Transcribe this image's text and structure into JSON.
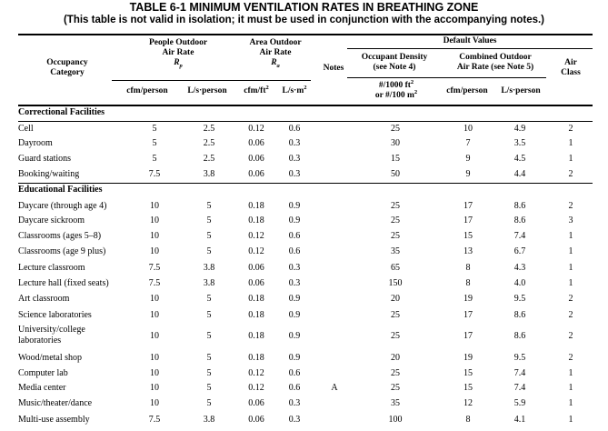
{
  "title": "TABLE 6-1     MINIMUM VENTILATION RATES IN BREATHING ZONE",
  "subtitle": "(This table is not valid in isolation; it must be used in conjunction with the accompanying notes.)",
  "headers": {
    "occupancy": [
      "Occupancy",
      "Category"
    ],
    "people": [
      "People Outdoor",
      "Air Rate"
    ],
    "people_sym": "R",
    "people_sub": "p",
    "area": [
      "Area Outdoor",
      "Air Rate"
    ],
    "area_sym": "R",
    "area_sub": "a",
    "notes": "Notes",
    "default_values": "Default Values",
    "density": [
      "Occupant Density",
      "(see Note 4)"
    ],
    "combined": [
      "Combined Outdoor",
      "Air Rate (see Note 5)"
    ],
    "air_class": [
      "Air",
      "Class"
    ],
    "unit_cfm_person": "cfm/person",
    "unit_ls_person": "L/s·person",
    "unit_cfm_ft2": "cfm/ft",
    "unit_ls_m2": "L/s·m",
    "unit_sq": "2",
    "density_unit_1": "#/1000 ft",
    "density_unit_2": "or #/100 m",
    "unit_cfm_person_2": "cfm/person",
    "unit_ls_person_2": "L/s·person"
  },
  "sections": [
    {
      "name": "Correctional Facilities",
      "rows": [
        {
          "name": "Cell",
          "rp_cfm": "5",
          "rp_ls": "2.5",
          "ra_cfm": "0.12",
          "ra_ls": "0.6",
          "notes": "",
          "density": "25",
          "comb_cfm": "10",
          "comb_ls": "4.9",
          "air_class": "2"
        },
        {
          "name": "Dayroom",
          "rp_cfm": "5",
          "rp_ls": "2.5",
          "ra_cfm": "0.06",
          "ra_ls": "0.3",
          "notes": "",
          "density": "30",
          "comb_cfm": "7",
          "comb_ls": "3.5",
          "air_class": "1"
        },
        {
          "name": "Guard stations",
          "rp_cfm": "5",
          "rp_ls": "2.5",
          "ra_cfm": "0.06",
          "ra_ls": "0.3",
          "notes": "",
          "density": "15",
          "comb_cfm": "9",
          "comb_ls": "4.5",
          "air_class": "1"
        },
        {
          "name": "Booking/waiting",
          "rp_cfm": "7.5",
          "rp_ls": "3.8",
          "ra_cfm": "0.06",
          "ra_ls": "0.3",
          "notes": "",
          "density": "50",
          "comb_cfm": "9",
          "comb_ls": "4.4",
          "air_class": "2"
        }
      ]
    },
    {
      "name": "Educational Facilities",
      "rows": [
        {
          "name": "Daycare (through age 4)",
          "rp_cfm": "10",
          "rp_ls": "5",
          "ra_cfm": "0.18",
          "ra_ls": "0.9",
          "notes": "",
          "density": "25",
          "comb_cfm": "17",
          "comb_ls": "8.6",
          "air_class": "2"
        },
        {
          "name": "Daycare sickroom",
          "rp_cfm": "10",
          "rp_ls": "5",
          "ra_cfm": "0.18",
          "ra_ls": "0.9",
          "notes": "",
          "density": "25",
          "comb_cfm": "17",
          "comb_ls": "8.6",
          "air_class": "3"
        },
        {
          "name": "Classrooms (ages 5–8)",
          "rp_cfm": "10",
          "rp_ls": "5",
          "ra_cfm": "0.12",
          "ra_ls": "0.6",
          "notes": "",
          "density": "25",
          "comb_cfm": "15",
          "comb_ls": "7.4",
          "air_class": "1"
        },
        {
          "name": "Classrooms (age 9 plus)",
          "rp_cfm": "10",
          "rp_ls": "5",
          "ra_cfm": "0.12",
          "ra_ls": "0.6",
          "notes": "",
          "density": "35",
          "comb_cfm": "13",
          "comb_ls": "6.7",
          "air_class": "1"
        },
        {
          "name": "Lecture classroom",
          "rp_cfm": "7.5",
          "rp_ls": "3.8",
          "ra_cfm": "0.06",
          "ra_ls": "0.3",
          "notes": "",
          "density": "65",
          "comb_cfm": "8",
          "comb_ls": "4.3",
          "air_class": "1"
        },
        {
          "name": "Lecture hall (fixed seats)",
          "rp_cfm": "7.5",
          "rp_ls": "3.8",
          "ra_cfm": "0.06",
          "ra_ls": "0.3",
          "notes": "",
          "density": "150",
          "comb_cfm": "8",
          "comb_ls": "4.0",
          "air_class": "1"
        },
        {
          "name": "Art classroom",
          "rp_cfm": "10",
          "rp_ls": "5",
          "ra_cfm": "0.18",
          "ra_ls": "0.9",
          "notes": "",
          "density": "20",
          "comb_cfm": "19",
          "comb_ls": "9.5",
          "air_class": "2"
        },
        {
          "name": "Science laboratories",
          "rp_cfm": "10",
          "rp_ls": "5",
          "ra_cfm": "0.18",
          "ra_ls": "0.9",
          "notes": "",
          "density": "25",
          "comb_cfm": "17",
          "comb_ls": "8.6",
          "air_class": "2"
        },
        {
          "name": "University/college laboratories",
          "rp_cfm": "10",
          "rp_ls": "5",
          "ra_cfm": "0.18",
          "ra_ls": "0.9",
          "notes": "",
          "density": "25",
          "comb_cfm": "17",
          "comb_ls": "8.6",
          "air_class": "2"
        },
        {
          "name": "Wood/metal shop",
          "rp_cfm": "10",
          "rp_ls": "5",
          "ra_cfm": "0.18",
          "ra_ls": "0.9",
          "notes": "",
          "density": "20",
          "comb_cfm": "19",
          "comb_ls": "9.5",
          "air_class": "2"
        },
        {
          "name": "Computer lab",
          "rp_cfm": "10",
          "rp_ls": "5",
          "ra_cfm": "0.12",
          "ra_ls": "0.6",
          "notes": "",
          "density": "25",
          "comb_cfm": "15",
          "comb_ls": "7.4",
          "air_class": "1"
        },
        {
          "name": "Media center",
          "rp_cfm": "10",
          "rp_ls": "5",
          "ra_cfm": "0.12",
          "ra_ls": "0.6",
          "notes": "A",
          "density": "25",
          "comb_cfm": "15",
          "comb_ls": "7.4",
          "air_class": "1"
        },
        {
          "name": "Music/theater/dance",
          "rp_cfm": "10",
          "rp_ls": "5",
          "ra_cfm": "0.06",
          "ra_ls": "0.3",
          "notes": "",
          "density": "35",
          "comb_cfm": "12",
          "comb_ls": "5.9",
          "air_class": "1"
        },
        {
          "name": "Multi-use assembly",
          "rp_cfm": "7.5",
          "rp_ls": "3.8",
          "ra_cfm": "0.06",
          "ra_ls": "0.3",
          "notes": "",
          "density": "100",
          "comb_cfm": "8",
          "comb_ls": "4.1",
          "air_class": "1"
        }
      ]
    }
  ]
}
